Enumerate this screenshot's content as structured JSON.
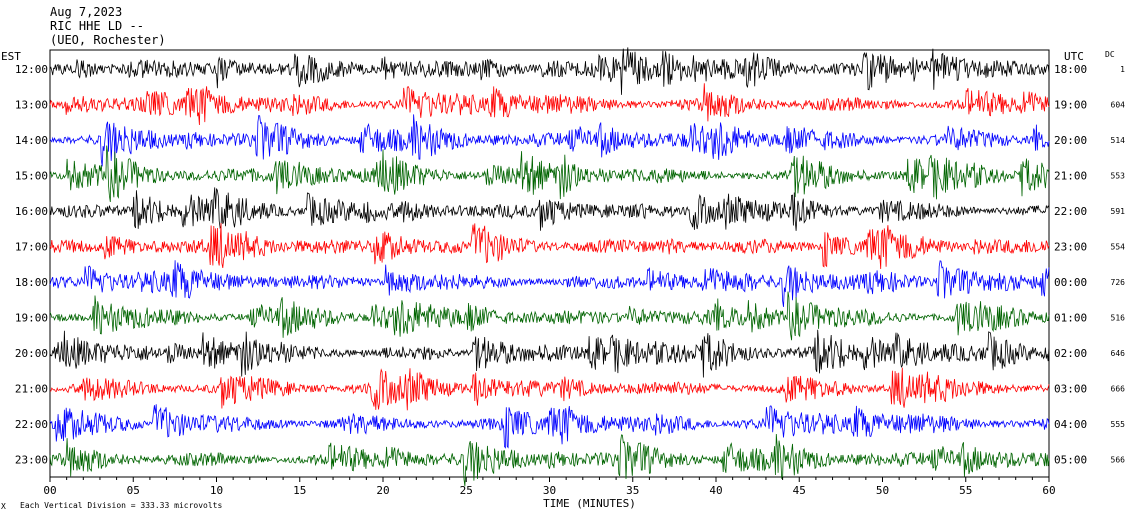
{
  "header": {
    "date": "Aug 7,2023",
    "station": "RIC HHE LD --",
    "org": "(UEO, Rochester)"
  },
  "left_axis_label": "EST",
  "right_axis_label": "UTC",
  "dc_label": "DC",
  "footer": {
    "scale_note": "Each Vertical Division = 333.33 microvolts",
    "corner_mark": "X"
  },
  "chart_data": {
    "type": "line",
    "xlabel": "TIME (MINUTES)",
    "xlim": [
      0,
      60
    ],
    "x_ticks": [
      0,
      5,
      10,
      15,
      20,
      25,
      30,
      35,
      40,
      45,
      50,
      55,
      60
    ],
    "x_tick_labels": [
      "00",
      "05",
      "10",
      "15",
      "20",
      "25",
      "30",
      "35",
      "40",
      "45",
      "50",
      "55",
      "60"
    ],
    "rows": [
      {
        "est": "12:00",
        "utc": "18:00",
        "dc": "1",
        "color": "#000000"
      },
      {
        "est": "13:00",
        "utc": "19:00",
        "dc": "604",
        "color": "#ff0000"
      },
      {
        "est": "14:00",
        "utc": "20:00",
        "dc": "514",
        "color": "#0000ff"
      },
      {
        "est": "15:00",
        "utc": "21:00",
        "dc": "553",
        "color": "#006400"
      },
      {
        "est": "16:00",
        "utc": "22:00",
        "dc": "591",
        "color": "#000000"
      },
      {
        "est": "17:00",
        "utc": "23:00",
        "dc": "554",
        "color": "#ff0000"
      },
      {
        "est": "18:00",
        "utc": "00:00",
        "dc": "726",
        "color": "#0000ff"
      },
      {
        "est": "19:00",
        "utc": "01:00",
        "dc": "516",
        "color": "#006400"
      },
      {
        "est": "20:00",
        "utc": "02:00",
        "dc": "646",
        "color": "#000000"
      },
      {
        "est": "21:00",
        "utc": "03:00",
        "dc": "666",
        "color": "#ff0000"
      },
      {
        "est": "22:00",
        "utc": "04:00",
        "dc": "555",
        "color": "#0000ff"
      },
      {
        "est": "23:00",
        "utc": "05:00",
        "dc": "566",
        "color": "#006400"
      }
    ]
  }
}
